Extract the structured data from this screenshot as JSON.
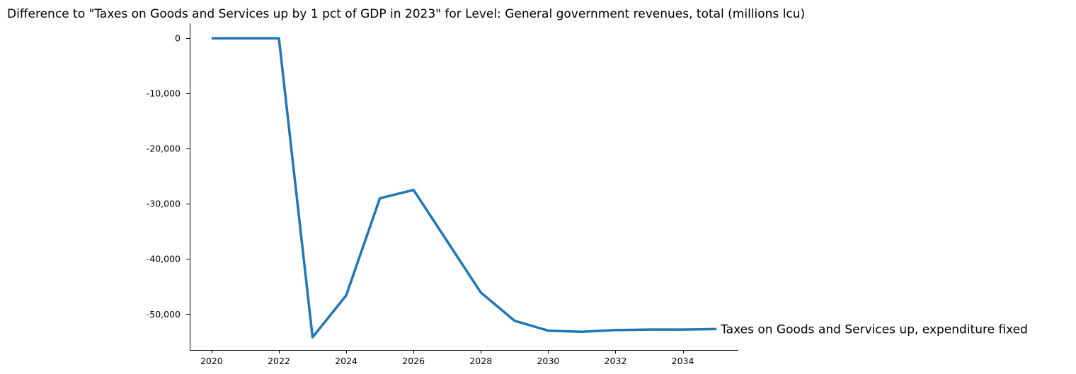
{
  "chart_data": {
    "type": "line",
    "title": "Difference to \"Taxes on Goods and Services up by 1 pct of GDP in 2023\" for Level: General government revenues, total (millions lcu)",
    "xlabel": "",
    "ylabel": "",
    "xlim": [
      2019.35,
      2035.65
    ],
    "ylim": [
      -56500,
      2700
    ],
    "x_ticks": [
      2020,
      2022,
      2024,
      2026,
      2028,
      2030,
      2032,
      2034
    ],
    "x_tick_labels": [
      "2020",
      "2022",
      "2024",
      "2026",
      "2028",
      "2030",
      "2032",
      "2034"
    ],
    "y_ticks": [
      0,
      -10000,
      -20000,
      -30000,
      -40000,
      -50000
    ],
    "y_tick_labels": [
      "0",
      "-10,000",
      "-20,000",
      "-30,000",
      "-40,000",
      "-50,000"
    ],
    "grid": false,
    "legend": "none",
    "series": [
      {
        "name": "Taxes on Goods and Services up, expenditure fixed",
        "color": "#1f77b4",
        "x": [
          2020,
          2021,
          2022,
          2023,
          2024,
          2025,
          2026,
          2027,
          2028,
          2029,
          2030,
          2031,
          2032,
          2033,
          2034,
          2035
        ],
        "y": [
          0,
          0,
          0,
          -54200,
          -46600,
          -29000,
          -27500,
          -36800,
          -46100,
          -51200,
          -53000,
          -53200,
          -52900,
          -52800,
          -52800,
          -52700
        ]
      }
    ]
  }
}
